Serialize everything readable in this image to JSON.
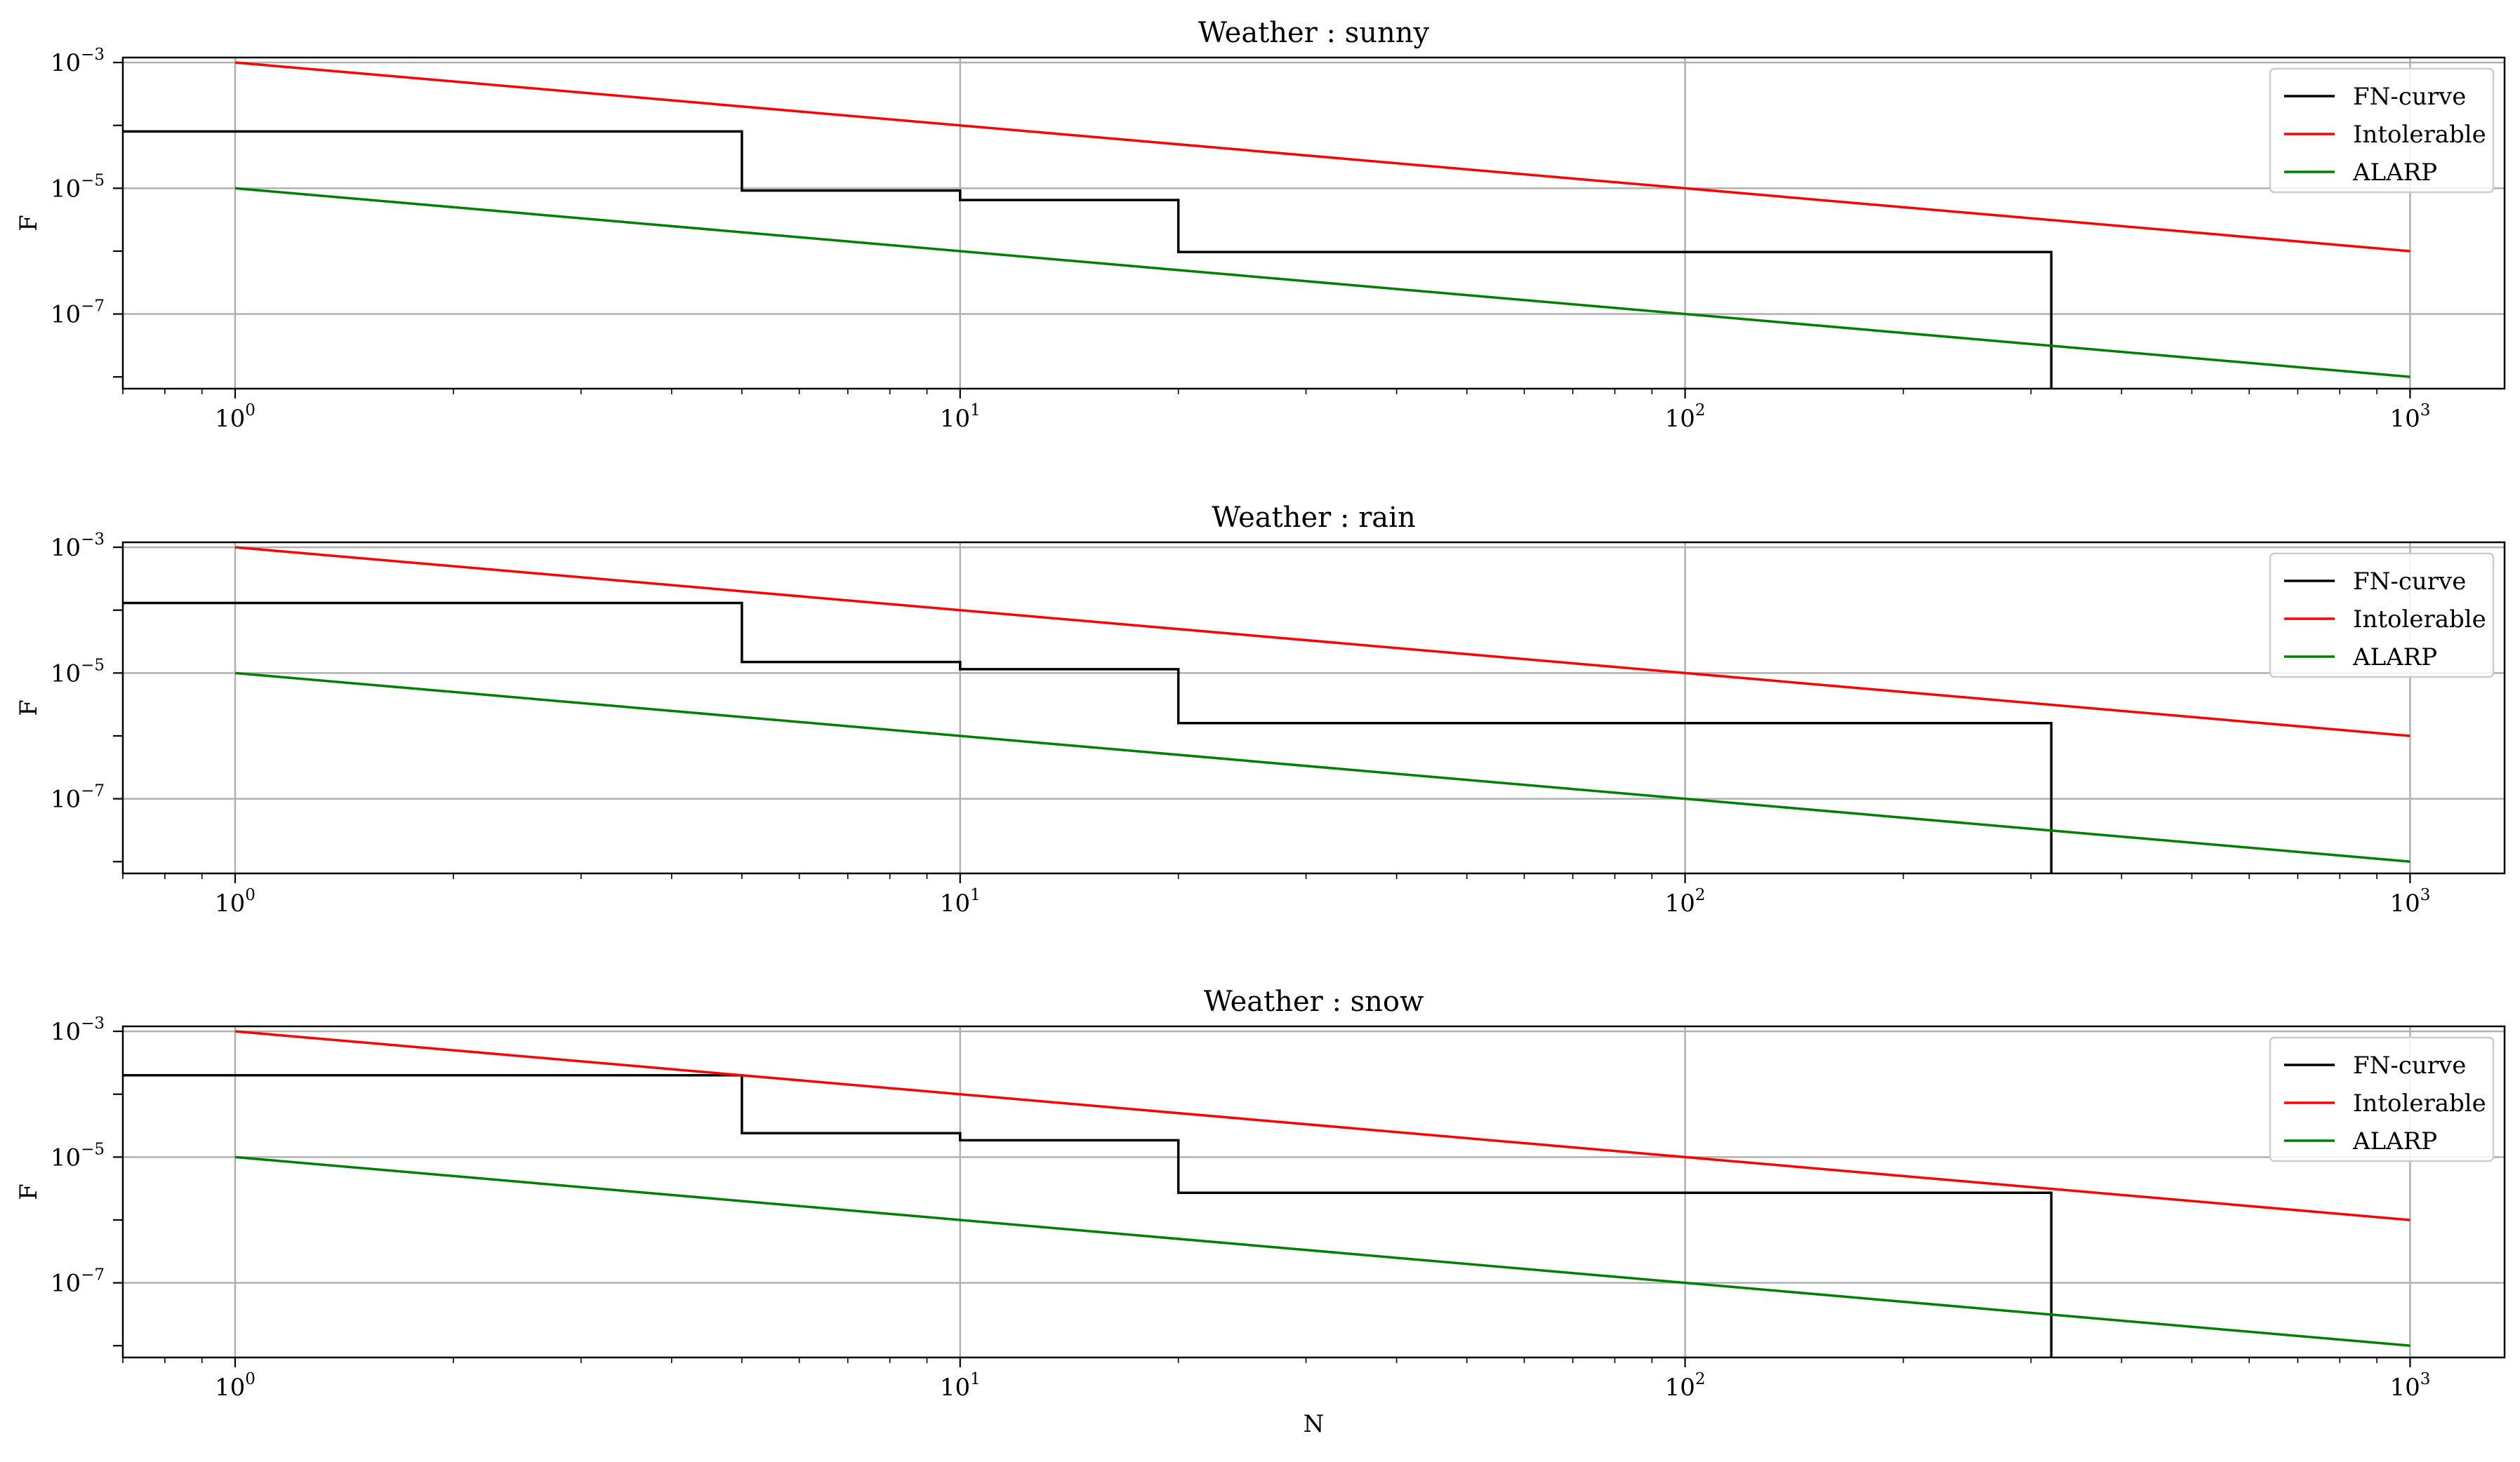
{
  "colors": {
    "fn_curve": "#000000",
    "intolerable": "#ff0000",
    "alarp": "#008000",
    "grid": "#b0b0b0"
  },
  "x_tick_labels": [
    {
      "base": "10",
      "exp": "0",
      "value": 1
    },
    {
      "base": "10",
      "exp": "1",
      "value": 10
    },
    {
      "base": "10",
      "exp": "2",
      "value": 100
    },
    {
      "base": "10",
      "exp": "3",
      "value": 1000
    }
  ],
  "y_tick_labels": [
    {
      "base": "10",
      "exp": "−3",
      "value": 0.001
    },
    {
      "base": "10",
      "exp": "−5",
      "value": 1e-05
    },
    {
      "base": "10",
      "exp": "−7",
      "value": 1e-07
    }
  ],
  "chart_data": [
    {
      "type": "line",
      "title": "Weather : sunny",
      "xlabel": "",
      "ylabel": "F",
      "xscale": "log",
      "yscale": "log",
      "xlim": [
        0.7,
        1350
      ],
      "ylim": [
        6.5e-09,
        0.0012
      ],
      "grid": true,
      "legend_position": "top-right",
      "series": [
        {
          "name": "FN-curve",
          "style": "steps-post",
          "color": "#000000",
          "x": [
            0.7,
            5,
            5,
            10,
            10,
            20,
            20,
            320,
            320
          ],
          "y": [
            8e-05,
            8e-05,
            9.2e-06,
            9.2e-06,
            6.5e-06,
            6.5e-06,
            9.7e-07,
            9.7e-07,
            6.5e-09
          ]
        },
        {
          "name": "Intolerable",
          "color": "#ff0000",
          "x": [
            1,
            1000
          ],
          "y": [
            0.001,
            1e-06
          ]
        },
        {
          "name": "ALARP",
          "color": "#008000",
          "x": [
            1,
            1000
          ],
          "y": [
            1e-05,
            1e-08
          ]
        }
      ]
    },
    {
      "type": "line",
      "title": "Weather : rain",
      "xlabel": "",
      "ylabel": "F",
      "xscale": "log",
      "yscale": "log",
      "xlim": [
        0.7,
        1350
      ],
      "ylim": [
        6.5e-09,
        0.0012
      ],
      "grid": true,
      "legend_position": "top-right",
      "series": [
        {
          "name": "FN-curve",
          "style": "steps-post",
          "color": "#000000",
          "x": [
            0.7,
            5,
            5,
            10,
            10,
            20,
            20,
            320,
            320
          ],
          "y": [
            0.00013,
            0.00013,
            1.5e-05,
            1.5e-05,
            1.15e-05,
            1.15e-05,
            1.6e-06,
            1.6e-06,
            6.5e-09
          ]
        },
        {
          "name": "Intolerable",
          "color": "#ff0000",
          "x": [
            1,
            1000
          ],
          "y": [
            0.001,
            1e-06
          ]
        },
        {
          "name": "ALARP",
          "color": "#008000",
          "x": [
            1,
            1000
          ],
          "y": [
            1e-05,
            1e-08
          ]
        }
      ]
    },
    {
      "type": "line",
      "title": "Weather : snow",
      "xlabel": "N",
      "ylabel": "F",
      "xscale": "log",
      "yscale": "log",
      "xlim": [
        0.7,
        1350
      ],
      "ylim": [
        6.5e-09,
        0.0012
      ],
      "grid": true,
      "legend_position": "top-right",
      "series": [
        {
          "name": "FN-curve",
          "style": "steps-post",
          "color": "#000000",
          "x": [
            0.7,
            5,
            5,
            10,
            10,
            20,
            20,
            320,
            320
          ],
          "y": [
            0.0002,
            0.0002,
            2.4e-05,
            2.4e-05,
            1.85e-05,
            1.85e-05,
            2.7e-06,
            2.7e-06,
            6.5e-09
          ]
        },
        {
          "name": "Intolerable",
          "color": "#ff0000",
          "x": [
            1,
            1000
          ],
          "y": [
            0.001,
            1e-06
          ]
        },
        {
          "name": "ALARP",
          "color": "#008000",
          "x": [
            1,
            1000
          ],
          "y": [
            1e-05,
            1e-08
          ]
        }
      ]
    }
  ]
}
